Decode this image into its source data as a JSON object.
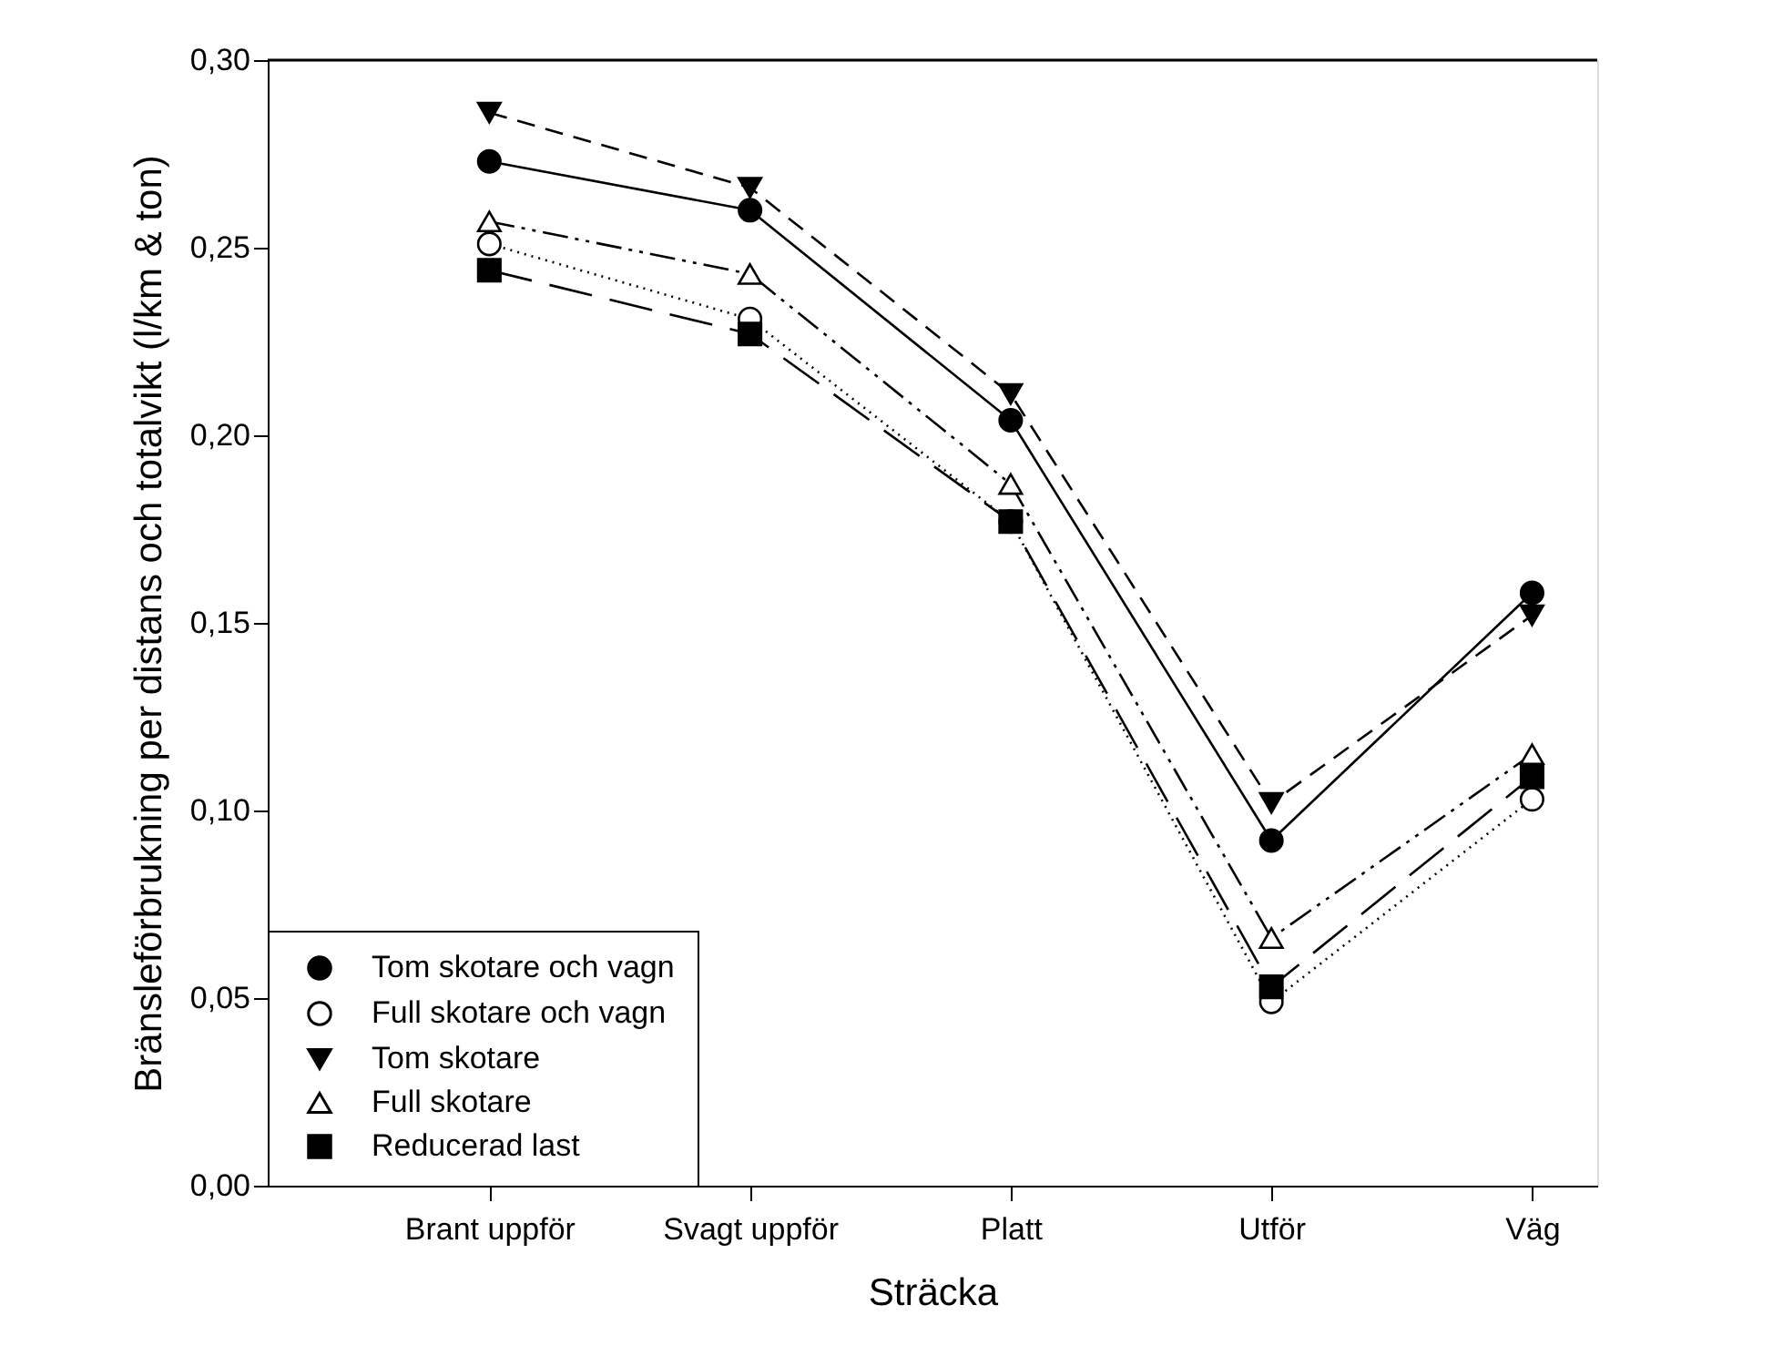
{
  "chart_data": {
    "type": "line",
    "xlabel": "Sträcka",
    "ylabel": "Bränsleförbrukning per distans och totalvikt (l/km & ton)",
    "categories": [
      "Brant uppför",
      "Svagt uppför",
      "Platt",
      "Utför",
      "Väg"
    ],
    "ylim": [
      0,
      0.3
    ],
    "yticks": [
      {
        "value": 0,
        "label": "0,00"
      },
      {
        "value": 0.05,
        "label": "0,05"
      },
      {
        "value": 0.1,
        "label": "0,10"
      },
      {
        "value": 0.15,
        "label": "0,15"
      },
      {
        "value": 0.2,
        "label": "0,20"
      },
      {
        "value": 0.25,
        "label": "0,25"
      },
      {
        "value": 0.3,
        "label": "0,30"
      }
    ],
    "grid": false,
    "legend": "bottom left",
    "series": [
      {
        "name": "Tom skotare och vagn",
        "color": "#000000",
        "marker": "circle",
        "line_style": "solid",
        "values": [
          0.273,
          0.26,
          0.204,
          0.092,
          0.158
        ]
      },
      {
        "name": "Full skotare och vagn",
        "color": "#000000",
        "marker": "circle-open",
        "line_style": "dotted",
        "values": [
          0.251,
          0.231,
          0.177,
          0.049,
          0.103
        ]
      },
      {
        "name": "Tom skotare",
        "color": "#000000",
        "marker": "triangle-down",
        "line_style": "dashed",
        "values": [
          0.286,
          0.266,
          0.211,
          0.102,
          0.152
        ]
      },
      {
        "name": "Full skotare",
        "color": "#000000",
        "marker": "triangle-open",
        "line_style": "dashdotdot",
        "values": [
          0.257,
          0.243,
          0.187,
          0.066,
          0.115
        ]
      },
      {
        "name": "Reducerad last",
        "color": "#000000",
        "marker": "square",
        "line_style": "longdash",
        "values": [
          0.244,
          0.227,
          0.177,
          0.053,
          0.109
        ]
      }
    ]
  }
}
